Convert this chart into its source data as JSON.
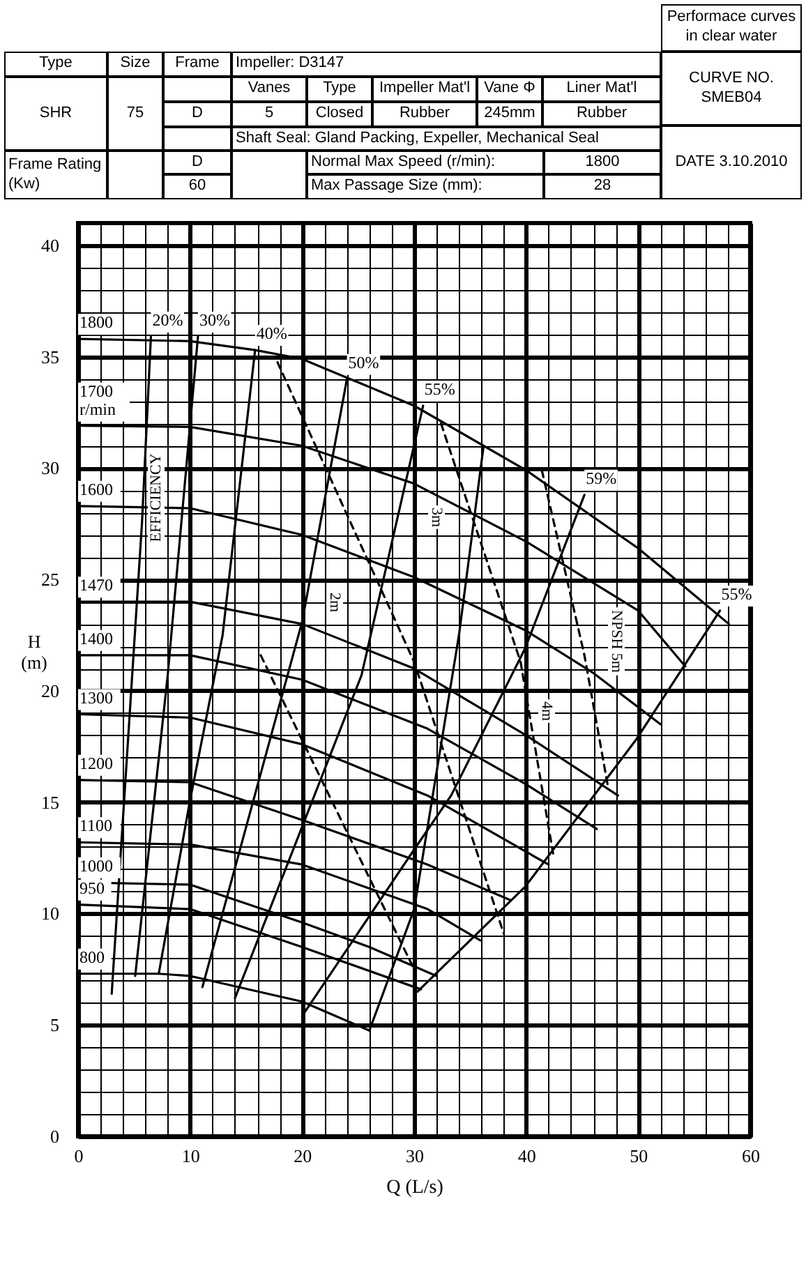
{
  "chart_data": [
    {
      "type": "other",
      "annotations": [
        "Performace curves in clear water",
        "Type",
        "Size",
        "Frame",
        "Impeller: D3147",
        "CURVE NO. SMEB04",
        "Vanes",
        "Type",
        "Impeller Mat'l",
        "Vane Φ",
        "Liner Mat'l",
        "SHR",
        "75",
        "D",
        "5",
        "Closed",
        "Rubber",
        "245mm",
        "Rubber",
        "Shaft Seal: Gland Packing, Expeller, Mechanical Seal",
        "DATE 3.10.2010",
        "Frame Rating (Kw)",
        "D",
        "Normal Max Speed (r/min):",
        "1800",
        "60",
        "Max Passage Size (mm):",
        "28"
      ]
    },
    {
      "type": "line",
      "xlabel": "Q (L/s)",
      "ylabel": "H (m)",
      "xlim": [
        0,
        60
      ],
      "ylim": [
        0,
        41
      ],
      "grid": true,
      "marker": "none",
      "xticks": [
        0,
        {
          "value": 2,
          "label": null
        },
        {
          "value": 4,
          "label": null
        },
        {
          "value": 6,
          "label": null
        },
        {
          "value": 8,
          "label": null
        },
        10,
        {
          "value": 12,
          "label": null
        },
        {
          "value": 14,
          "label": null
        },
        {
          "value": 16,
          "label": null
        },
        {
          "value": 18,
          "label": null
        },
        20,
        {
          "value": 22,
          "label": null
        },
        {
          "value": 24,
          "label": null
        },
        {
          "value": 26,
          "label": null
        },
        {
          "value": 28,
          "label": null
        },
        30,
        {
          "value": 32,
          "label": null
        },
        {
          "value": 34,
          "label": null
        },
        {
          "value": 36,
          "label": null
        },
        {
          "value": 38,
          "label": null
        },
        40,
        {
          "value": 42,
          "label": null
        },
        {
          "value": 44,
          "label": null
        },
        {
          "value": 46,
          "label": null
        },
        {
          "value": 48,
          "label": null
        },
        50,
        {
          "value": 52,
          "label": null
        },
        {
          "value": 54,
          "label": null
        },
        {
          "value": 56,
          "label": null
        },
        {
          "value": 58,
          "label": null
        },
        60
      ],
      "yticks": [
        0,
        {
          "value": 1,
          "label": null
        },
        {
          "value": 2,
          "label": null
        },
        {
          "value": 3,
          "label": null
        },
        {
          "value": 4,
          "label": null
        },
        5,
        {
          "value": 6,
          "label": null
        },
        {
          "value": 7,
          "label": null
        },
        {
          "value": 8,
          "label": null
        },
        {
          "value": 9,
          "label": null
        },
        10,
        {
          "value": 11,
          "label": null
        },
        {
          "value": 12,
          "label": null
        },
        {
          "value": 13,
          "label": null
        },
        {
          "value": 14,
          "label": null
        },
        15,
        {
          "value": 16,
          "label": null
        },
        {
          "value": 17,
          "label": null
        },
        {
          "value": 18,
          "label": null
        },
        {
          "value": 19,
          "label": null
        },
        20,
        {
          "value": 21,
          "label": null
        },
        {
          "value": 22,
          "label": null
        },
        {
          "value": 23,
          "label": null
        },
        {
          "value": 24,
          "label": null
        },
        25,
        {
          "value": 26,
          "label": null
        },
        {
          "value": 27,
          "label": null
        },
        {
          "value": 28,
          "label": null
        },
        {
          "value": 29,
          "label": null
        },
        30,
        {
          "value": 31,
          "label": null
        },
        {
          "value": 32,
          "label": null
        },
        {
          "value": 33,
          "label": null
        },
        {
          "value": 34,
          "label": null
        },
        35,
        {
          "value": 36,
          "label": null
        },
        {
          "value": 37,
          "label": null
        },
        {
          "value": 38,
          "label": null
        },
        {
          "value": 39,
          "label": null
        },
        40,
        {
          "value": 41,
          "label": null
        }
      ],
      "series": [
        {
          "name": "1800",
          "color": "#000000",
          "x": [
            0,
            10,
            15.8,
            20,
            30,
            40,
            50,
            58.1
          ],
          "values": [
            35.8,
            35.7,
            35.3,
            34.9,
            32.8,
            29.9,
            26.4,
            23.0
          ]
        },
        {
          "name": "1700 r/min",
          "color": "#000000",
          "x": [
            0,
            10,
            20,
            30,
            40,
            50,
            54.2
          ],
          "values": [
            31.9,
            31.85,
            31.0,
            29.3,
            26.7,
            23.6,
            21.1
          ]
        },
        {
          "name": "1600",
          "color": "#000000",
          "x": [
            0,
            10,
            20,
            30,
            40,
            46,
            52
          ],
          "values": [
            28.3,
            28.2,
            27.0,
            25.1,
            22.7,
            20.8,
            18.5
          ]
        },
        {
          "name": "1470",
          "color": "#000000",
          "x": [
            0,
            10,
            20,
            30,
            40,
            48.2
          ],
          "values": [
            24.0,
            24.0,
            23.0,
            21.0,
            18.0,
            15.3
          ]
        },
        {
          "name": "1400",
          "color": "#000000",
          "x": [
            0,
            10,
            20,
            31.2,
            40,
            46.3
          ],
          "values": [
            21.6,
            21.6,
            20.5,
            18.3,
            15.8,
            13.8
          ]
        },
        {
          "name": "1300",
          "color": "#000000",
          "x": [
            0,
            10,
            20,
            31.2,
            42
          ],
          "values": [
            18.95,
            18.8,
            17.6,
            15.3,
            12.2
          ]
        },
        {
          "name": "1200",
          "color": "#000000",
          "x": [
            0,
            10,
            20,
            31.2,
            38.6
          ],
          "values": [
            16.0,
            15.9,
            14.2,
            12.2,
            10.6
          ]
        },
        {
          "name": "1100",
          "color": "#000000",
          "x": [
            0,
            10,
            20,
            31.2,
            35.9
          ],
          "values": [
            13.2,
            13.1,
            12.2,
            10.2,
            8.8
          ]
        },
        {
          "name": "1000",
          "color": "#000000",
          "x": [
            0,
            10,
            20,
            26,
            32
          ],
          "values": [
            11.4,
            11.3,
            9.6,
            8.5,
            7.2
          ]
        },
        {
          "name": "950",
          "color": "#000000",
          "x": [
            0,
            10,
            20,
            30.6
          ],
          "values": [
            10.4,
            10.2,
            8.5,
            6.6
          ]
        },
        {
          "name": "800",
          "color": "#000000",
          "x": [
            0,
            7.2,
            10,
            20,
            26
          ],
          "values": [
            7.3,
            7.3,
            7.2,
            6.05,
            4.75
          ]
        },
        {
          "name": "20%",
          "color": "#000000",
          "x": [
            6.5,
            5.7,
            3.0
          ],
          "values": [
            35.9,
            27.5,
            6.4
          ]
        },
        {
          "name": "30%",
          "color": "#000000",
          "x": [
            10.7,
            8.0,
            5.1
          ],
          "values": [
            35.9,
            20.7,
            7.2
          ]
        },
        {
          "name": "40%",
          "color": "#000000",
          "x": [
            15.8,
            12.9,
            10.0,
            7.2
          ],
          "values": [
            35.3,
            22.5,
            15.1,
            7.3
          ]
        },
        {
          "name": "50%",
          "color": "#000000",
          "x": [
            24,
            20,
            11.1
          ],
          "values": [
            34.0,
            23.1,
            6.7
          ]
        },
        {
          "name": "55%",
          "color": "#000000",
          "x": [
            30.8,
            25.3,
            14.0
          ],
          "values": [
            32.8,
            20.7,
            6.2
          ]
        },
        {
          "name": "59%",
          "color": "#000000",
          "x": [
            45.2,
            39.9,
            33.3,
            29.9,
            20
          ],
          "values": [
            28.8,
            21.9,
            15.3,
            12.8,
            5.4
          ]
        },
        {
          "name": "55%",
          "color": "#000000",
          "x": [
            57.3,
            49.8,
            39.9,
            30.3
          ],
          "values": [
            23.6,
            17.8,
            11.2,
            6.5
          ]
        },
        {
          "color": "#000000",
          "x": [
            26,
            30,
            34,
            36.2
          ],
          "values": [
            4.75,
            10.2,
            22.5,
            31.0
          ]
        },
        {
          "color": "#000000",
          "line_style": "dashed",
          "x": [
            16.3,
            26.2,
            30
          ],
          "values": [
            21.6,
            11.4,
            7.5
          ]
        },
        {
          "color": "#000000",
          "line_style": "dashed",
          "x": [
            17.8,
            30,
            38
          ],
          "values": [
            34.75,
            21.3,
            9.1
          ]
        },
        {
          "color": "#000000",
          "line_style": "dashed",
          "x": [
            32.4,
            39.5,
            42.4
          ],
          "values": [
            32.0,
            21.3,
            12.7
          ]
        },
        {
          "color": "#000000",
          "line_style": "dashed",
          "x": [
            41.4,
            45.2,
            47.3
          ],
          "values": [
            29.9,
            21.6,
            15.7
          ]
        }
      ],
      "annotations": [
        "EFFICIENCY",
        "2m",
        "3m",
        "4m",
        "NPSH 5m"
      ]
    }
  ]
}
